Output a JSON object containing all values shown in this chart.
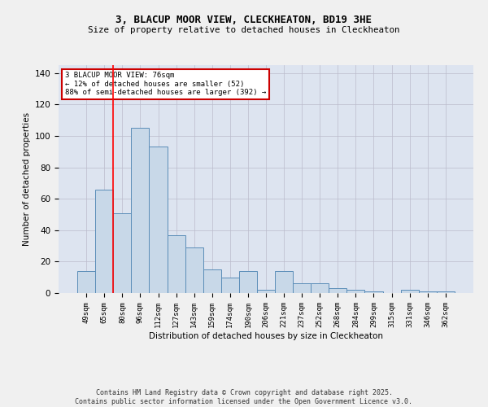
{
  "title1": "3, BLACUP MOOR VIEW, CLECKHEATON, BD19 3HE",
  "title2": "Size of property relative to detached houses in Cleckheaton",
  "xlabel": "Distribution of detached houses by size in Cleckheaton",
  "ylabel": "Number of detached properties",
  "categories": [
    "49sqm",
    "65sqm",
    "80sqm",
    "96sqm",
    "112sqm",
    "127sqm",
    "143sqm",
    "159sqm",
    "174sqm",
    "190sqm",
    "206sqm",
    "221sqm",
    "237sqm",
    "252sqm",
    "268sqm",
    "284sqm",
    "299sqm",
    "315sqm",
    "331sqm",
    "346sqm",
    "362sqm"
  ],
  "values": [
    14,
    66,
    51,
    105,
    93,
    37,
    29,
    15,
    10,
    14,
    2,
    14,
    6,
    6,
    3,
    2,
    1,
    0,
    2,
    1,
    1
  ],
  "bar_color": "#c8d8e8",
  "bar_edge_color": "#5b8db8",
  "grid_color": "#bbbbcc",
  "bg_color": "#dde4f0",
  "fig_bg_color": "#f0f0f0",
  "red_line_x": 1.5,
  "annotation_title": "3 BLACUP MOOR VIEW: 76sqm",
  "annotation_line1": "← 12% of detached houses are smaller (52)",
  "annotation_line2": "88% of semi-detached houses are larger (392) →",
  "annotation_box_color": "#ffffff",
  "annotation_border_color": "#cc0000",
  "footer1": "Contains HM Land Registry data © Crown copyright and database right 2025.",
  "footer2": "Contains public sector information licensed under the Open Government Licence v3.0.",
  "ylim": [
    0,
    145
  ],
  "yticks": [
    0,
    20,
    40,
    60,
    80,
    100,
    120,
    140
  ]
}
